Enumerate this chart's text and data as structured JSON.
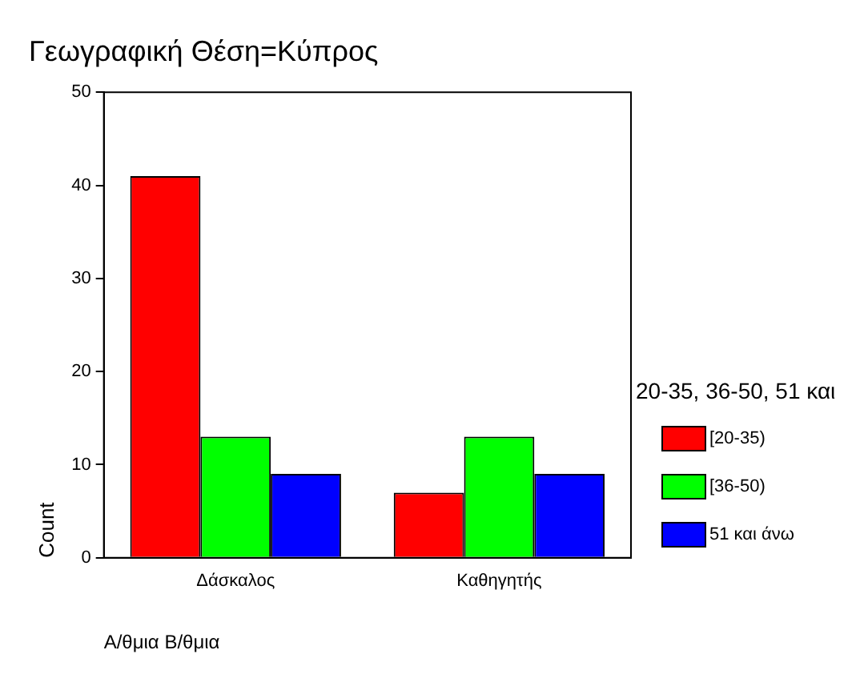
{
  "chart_data": {
    "type": "bar",
    "title": "Γεωγραφική Θέση=Κύπρος",
    "xlabel": "Α/θμια Β/θμια",
    "ylabel": "Count",
    "legend_title": "20-35, 36-50, 51 και",
    "categories": [
      "Δάσκαλος",
      "Καθηγητής"
    ],
    "series": [
      {
        "name": "[20-35)",
        "color": "#ff0000",
        "values": [
          41,
          7
        ]
      },
      {
        "name": "[36-50)",
        "color": "#00ff00",
        "values": [
          13,
          13
        ]
      },
      {
        "name": "51 και άνω",
        "color": "#0000ff",
        "values": [
          9,
          9
        ]
      }
    ],
    "ylim": [
      0,
      50
    ],
    "yticks": [
      0,
      10,
      20,
      30,
      40,
      50
    ],
    "grid": false,
    "legend": "right"
  }
}
